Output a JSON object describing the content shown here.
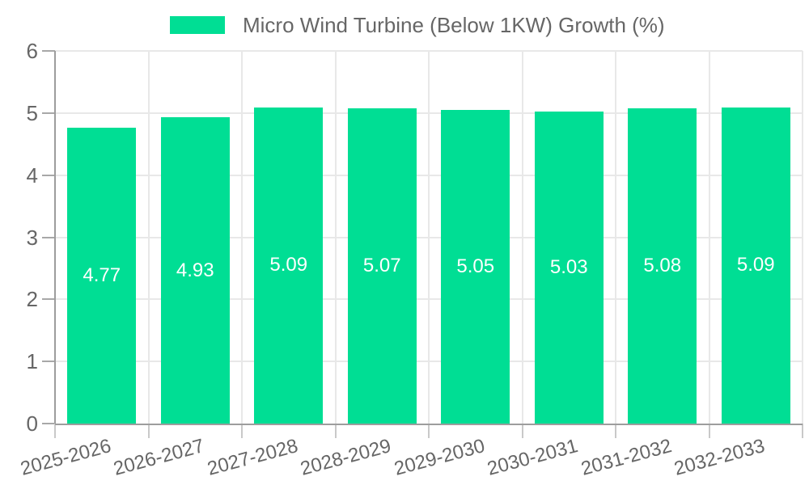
{
  "chart_data": {
    "type": "bar",
    "categories": [
      "2025-2026",
      "2026-2027",
      "2027-2028",
      "2028-2029",
      "2029-2030",
      "2030-2031",
      "2031-2032",
      "2032-2033"
    ],
    "series": [
      {
        "name": "Micro Wind Turbine (Below 1KW) Growth (%)",
        "values": [
          4.77,
          4.93,
          5.09,
          5.07,
          5.05,
          5.03,
          5.08,
          5.09
        ]
      }
    ],
    "value_labels": [
      "4.77",
      "4.93",
      "5.09",
      "5.07",
      "5.05",
      "5.03",
      "5.08",
      "5.09"
    ],
    "title": "",
    "xlabel": "",
    "ylabel": "",
    "ylim": [
      0,
      6
    ],
    "yticks": [
      0,
      1,
      2,
      3,
      4,
      5,
      6
    ],
    "grid": true,
    "legend_position": "top",
    "colors": {
      "bar": "#00DE94",
      "value_label": "#ffffff",
      "axis_text": "#666666",
      "axis_line": "#9D9D9D",
      "gridline": "#E8E8E8"
    }
  }
}
